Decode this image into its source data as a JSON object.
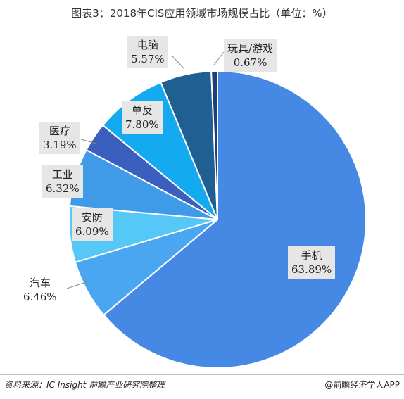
{
  "chart_data": {
    "type": "pie",
    "title": "图表3：2018年CIS应用领域市场规模占比（单位：%）",
    "slices": [
      {
        "name": "手机",
        "value": 63.89,
        "label": "63.89%",
        "color": "#4589e4"
      },
      {
        "name": "汽车",
        "value": 6.46,
        "label": "6.46%",
        "color": "#4aa6f0"
      },
      {
        "name": "安防",
        "value": 6.09,
        "label": "6.09%",
        "color": "#56c8f8"
      },
      {
        "name": "工业",
        "value": 6.32,
        "label": "6.32%",
        "color": "#3f9ae8"
      },
      {
        "name": "医疗",
        "value": 3.19,
        "label": "3.19%",
        "color": "#3b5fbf"
      },
      {
        "name": "单反",
        "value": 7.8,
        "label": "7.80%",
        "color": "#14aaf0"
      },
      {
        "name": "电脑",
        "value": 5.57,
        "label": "5.57%",
        "color": "#1f5f92"
      },
      {
        "name": "玩具/游戏",
        "value": 0.67,
        "label": "0.67%",
        "color": "#1e3f7a"
      }
    ]
  },
  "footer": {
    "source": "资料来源：IC Insight 前瞻产业研究院整理",
    "brand": "@前瞻经济学人APP"
  }
}
